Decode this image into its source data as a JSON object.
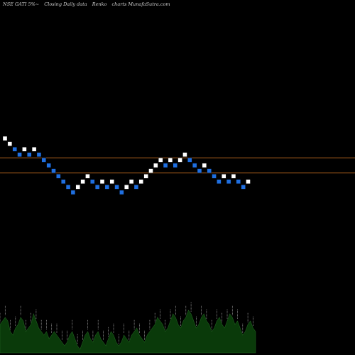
{
  "header": {
    "symbol": "NSE GATI 5%~",
    "kind": "Closing Daily data",
    "chart_style": "Renko",
    "site": "charts MunafaSutra.com"
  },
  "colors": {
    "background": "#000000",
    "up_brick": "#ffffff",
    "down_brick": "#1f6fe0",
    "reference_line": "#b5651d",
    "volume_area": "#0a3a0a",
    "volume_label": "#e8e8e8"
  },
  "chart_data": {
    "type": "renko",
    "title": "NSE GATI 5%~ Closing Daily data Renko charts MunafaSutra.com",
    "grid": false,
    "bricks": [
      {
        "level": 10,
        "dir": "up"
      },
      {
        "level": 9,
        "dir": "up"
      },
      {
        "level": 8,
        "dir": "down"
      },
      {
        "level": 7,
        "dir": "down"
      },
      {
        "level": 8,
        "dir": "up"
      },
      {
        "level": 7,
        "dir": "down"
      },
      {
        "level": 8,
        "dir": "up"
      },
      {
        "level": 7,
        "dir": "down"
      },
      {
        "level": 6,
        "dir": "down"
      },
      {
        "level": 5,
        "dir": "down"
      },
      {
        "level": 4,
        "dir": "down"
      },
      {
        "level": 3,
        "dir": "down"
      },
      {
        "level": 2,
        "dir": "down"
      },
      {
        "level": 1,
        "dir": "down"
      },
      {
        "level": 0,
        "dir": "down"
      },
      {
        "level": 1,
        "dir": "up"
      },
      {
        "level": 2,
        "dir": "up"
      },
      {
        "level": 3,
        "dir": "up"
      },
      {
        "level": 2,
        "dir": "down"
      },
      {
        "level": 1,
        "dir": "down"
      },
      {
        "level": 2,
        "dir": "up"
      },
      {
        "level": 1,
        "dir": "down"
      },
      {
        "level": 2,
        "dir": "up"
      },
      {
        "level": 1,
        "dir": "down"
      },
      {
        "level": 0,
        "dir": "down"
      },
      {
        "level": 1,
        "dir": "up"
      },
      {
        "level": 2,
        "dir": "up"
      },
      {
        "level": 1,
        "dir": "down"
      },
      {
        "level": 2,
        "dir": "up"
      },
      {
        "level": 3,
        "dir": "up"
      },
      {
        "level": 4,
        "dir": "up"
      },
      {
        "level": 5,
        "dir": "up"
      },
      {
        "level": 6,
        "dir": "up"
      },
      {
        "level": 5,
        "dir": "down"
      },
      {
        "level": 6,
        "dir": "up"
      },
      {
        "level": 5,
        "dir": "down"
      },
      {
        "level": 6,
        "dir": "up"
      },
      {
        "level": 7,
        "dir": "up"
      },
      {
        "level": 6,
        "dir": "down"
      },
      {
        "level": 5,
        "dir": "down"
      },
      {
        "level": 4,
        "dir": "down"
      },
      {
        "level": 5,
        "dir": "up"
      },
      {
        "level": 4,
        "dir": "down"
      },
      {
        "level": 3,
        "dir": "down"
      },
      {
        "level": 2,
        "dir": "down"
      },
      {
        "level": 3,
        "dir": "up"
      },
      {
        "level": 2,
        "dir": "down"
      },
      {
        "level": 3,
        "dir": "up"
      },
      {
        "level": 2,
        "dir": "down"
      },
      {
        "level": 1,
        "dir": "down"
      },
      {
        "level": 2,
        "dir": "up"
      }
    ],
    "reference_lines": [
      {
        "level": 6.4
      },
      {
        "level": 3.6
      }
    ],
    "volume": [
      8,
      9,
      10,
      9,
      6,
      5,
      7,
      8,
      10,
      9,
      6,
      7,
      8,
      11,
      9,
      7,
      6,
      5,
      6,
      4,
      5,
      6,
      5,
      4,
      3,
      2,
      3,
      5,
      6,
      4,
      2,
      1,
      3,
      5,
      6,
      4,
      3,
      5,
      6,
      4,
      3,
      2,
      4,
      6,
      5,
      3,
      2,
      3,
      5,
      4,
      3,
      5,
      6,
      7,
      5,
      4,
      3,
      5,
      6,
      7,
      8,
      10,
      9,
      8,
      6,
      7,
      9,
      11,
      10,
      8,
      7,
      9,
      10,
      12,
      11,
      9,
      7,
      8,
      10,
      11,
      9,
      8,
      6,
      7,
      9,
      10,
      8,
      7,
      9,
      11,
      10,
      8,
      9,
      7,
      5,
      6,
      8,
      9,
      7,
      6
    ]
  }
}
